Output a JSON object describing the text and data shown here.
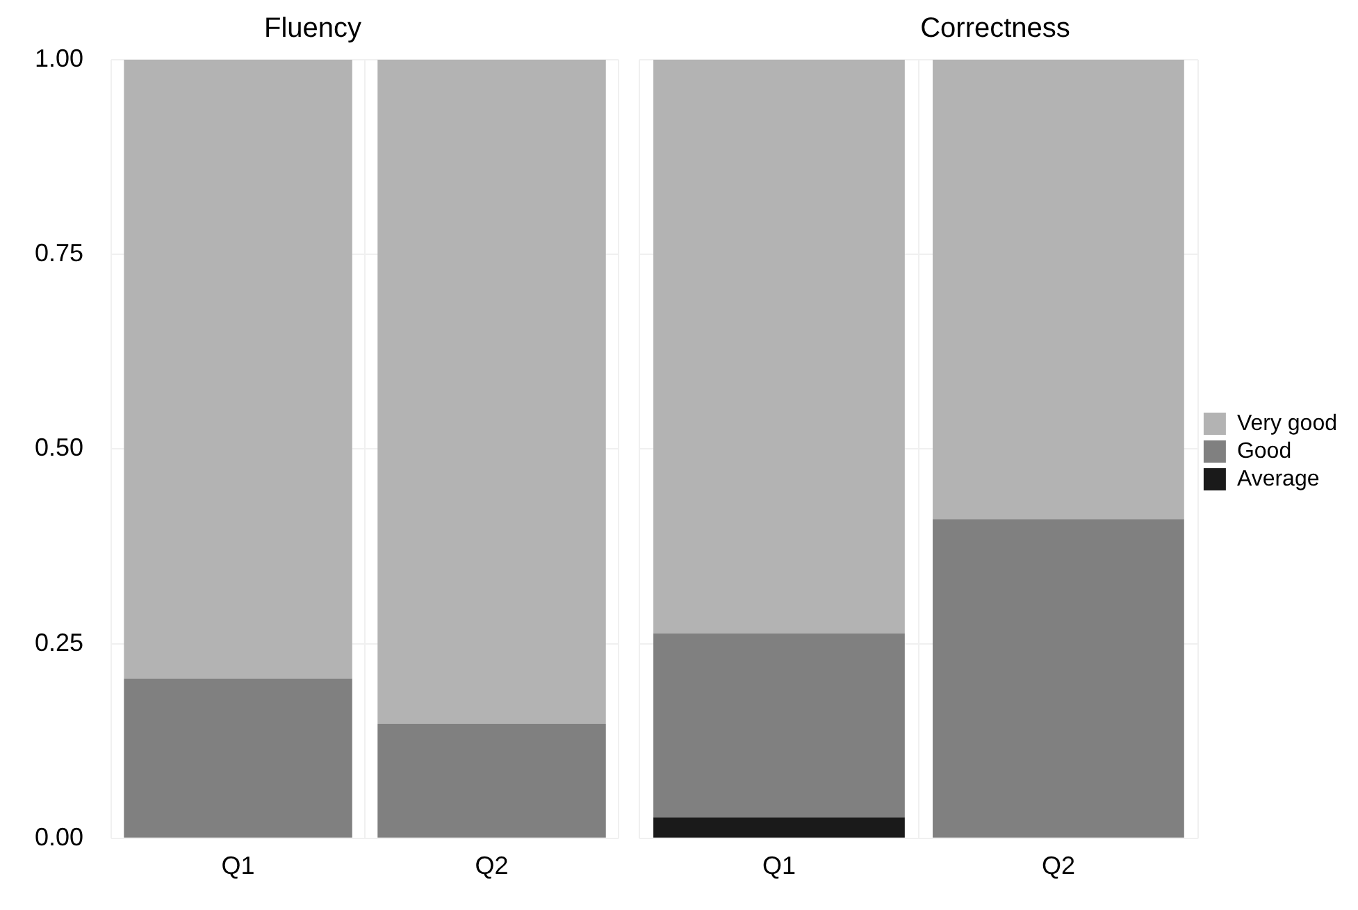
{
  "chart_data": [
    {
      "type": "bar",
      "title": "Fluency",
      "categories": [
        "Q1",
        "Q2"
      ],
      "stacked": true,
      "ylim": [
        0,
        1
      ],
      "yticks": [
        {
          "value": 0,
          "label": "0.00"
        },
        {
          "value": 0.25,
          "label": "0.25"
        },
        {
          "value": 0.5,
          "label": "0.50"
        },
        {
          "value": 0.75,
          "label": "0.75"
        },
        {
          "value": 1,
          "label": "1.00"
        }
      ],
      "grid": true,
      "legend": false,
      "series": [
        {
          "color": "#808080",
          "values": [
            0.205,
            0.147
          ]
        },
        {
          "color": "#b3b3b3",
          "values": [
            0.795,
            0.853
          ]
        }
      ]
    },
    {
      "type": "bar",
      "title": "Correctness",
      "categories": [
        "Q1",
        "Q2"
      ],
      "stacked": true,
      "ylim": [
        0,
        1
      ],
      "yticks": [
        0,
        0.25,
        0.5,
        0.75,
        1
      ],
      "grid": true,
      "legend": "right",
      "tick_labels": "x",
      "series": [
        {
          "name": "Average",
          "color": "#1a1a1a",
          "values": [
            0.027,
            null
          ]
        },
        {
          "name": "Good",
          "color": "#808080",
          "values": [
            0.236,
            0.41
          ]
        },
        {
          "name": "Very good",
          "color": "#b3b3b3",
          "values": [
            0.737,
            0.59
          ]
        }
      ]
    }
  ]
}
